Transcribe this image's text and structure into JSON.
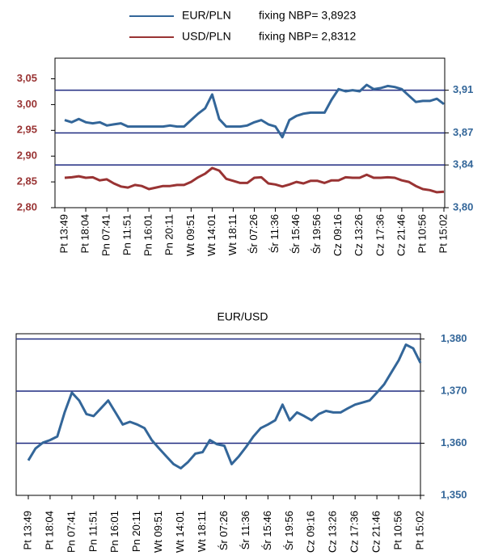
{
  "chart_data": [
    {
      "type": "line",
      "categories": [
        "Pt 13:49",
        null,
        null,
        "Pt 18:04",
        null,
        null,
        "Pn 07:41",
        null,
        null,
        "Pn 11:51",
        null,
        null,
        "Pn 16:01",
        null,
        null,
        "Pn 20:11",
        null,
        null,
        "Wt 09:51",
        null,
        null,
        "Wt 14:01",
        null,
        null,
        "Wt 18:11",
        null,
        null,
        "Śr 07:26",
        null,
        null,
        "Śr 11:36",
        null,
        null,
        "Śr 15:46",
        null,
        null,
        "Śr 19:56",
        null,
        null,
        "Cz 09:16",
        null,
        null,
        "Cz 13:26",
        null,
        null,
        "Cz 17:36",
        null,
        null,
        "Cz 21:46",
        null,
        null,
        "Pt 10:56",
        null,
        null,
        "Pt 15:02"
      ],
      "series": [
        {
          "name": "EUR/PLN",
          "fixing": "fixing NBP= 3,8923",
          "color": "#336699",
          "axis": "y2",
          "values": [
            3.882,
            3.88,
            3.883,
            3.88,
            3.879,
            3.88,
            3.877,
            3.878,
            3.879,
            3.876,
            3.876,
            3.876,
            3.876,
            3.876,
            3.876,
            3.877,
            3.876,
            3.876,
            3.882,
            3.888,
            3.893,
            3.906,
            3.883,
            3.876,
            3.876,
            3.876,
            3.877,
            3.88,
            3.882,
            3.878,
            3.876,
            3.866,
            3.882,
            3.886,
            3.888,
            3.889,
            3.889,
            3.889,
            3.901,
            3.911,
            3.909,
            3.91,
            3.909,
            3.915,
            3.911,
            3.912,
            3.914,
            3.913,
            3.911,
            3.905,
            3.899,
            3.9,
            3.9,
            3.902,
            3.897
          ]
        },
        {
          "name": "USD/PLN",
          "fixing": "fixing NBP= 2,8312",
          "color": "#993333",
          "values": [
            2.858,
            2.859,
            2.861,
            2.858,
            2.859,
            2.853,
            2.855,
            2.847,
            2.841,
            2.839,
            2.844,
            2.842,
            2.836,
            2.839,
            2.842,
            2.842,
            2.844,
            2.844,
            2.85,
            2.859,
            2.866,
            2.877,
            2.872,
            2.856,
            2.852,
            2.848,
            2.848,
            2.858,
            2.859,
            2.847,
            2.845,
            2.841,
            2.845,
            2.85,
            2.847,
            2.852,
            2.852,
            2.848,
            2.853,
            2.853,
            2.859,
            2.858,
            2.858,
            2.864,
            2.858,
            2.858,
            2.859,
            2.858,
            2.853,
            2.85,
            2.842,
            2.836,
            2.834,
            2.83,
            2.831
          ]
        }
      ],
      "ylim": [
        2.8,
        3.09
      ],
      "yticks": [
        {
          "value": 2.8,
          "label": "2,80"
        },
        {
          "value": 2.85,
          "label": "2,85"
        },
        {
          "value": 2.9,
          "label": "2,90"
        },
        {
          "value": 2.95,
          "label": "2,95"
        },
        {
          "value": 3.0,
          "label": "3,00"
        },
        {
          "value": 3.05,
          "label": "3,05"
        }
      ],
      "y2lim": [
        3.8,
        3.94
      ],
      "y2ticks": [
        {
          "value": 3.8,
          "label": "3,80"
        },
        {
          "value": 3.84,
          "label": "3,84"
        },
        {
          "value": 3.87,
          "label": "3,87"
        },
        {
          "value": 3.91,
          "label": "3,91"
        }
      ],
      "grid": true
    },
    {
      "type": "line",
      "title": "EUR/USD",
      "categories": [
        "Pt 13:49",
        null,
        null,
        "Pt 18:04",
        null,
        null,
        "Pn 07:41",
        null,
        null,
        "Pn 11:51",
        null,
        null,
        "Pn 16:01",
        null,
        null,
        "Pn 20:11",
        null,
        null,
        "Wt 09:51",
        null,
        null,
        "Wt 14:01",
        null,
        null,
        "Wt 18:11",
        null,
        null,
        "Śr 07:26",
        null,
        null,
        "Śr 11:36",
        null,
        null,
        "Śr 15:46",
        null,
        null,
        "Śr 19:56",
        null,
        null,
        "Cz 09:16",
        null,
        null,
        "Cz 13:26",
        null,
        null,
        "Cz 17:36",
        null,
        null,
        "Cz 21:46",
        null,
        null,
        "Pt 10:56",
        null,
        null,
        "Pt 15:02"
      ],
      "series": [
        {
          "color": "#336699",
          "axis": "y2",
          "values": [
            1.3567,
            1.359,
            1.3601,
            1.3606,
            1.3613,
            1.3659,
            1.3697,
            1.3682,
            1.3656,
            1.3652,
            1.3667,
            1.3682,
            1.3659,
            1.3636,
            1.3641,
            1.3636,
            1.3629,
            1.3606,
            1.359,
            1.3575,
            1.356,
            1.3552,
            1.3564,
            1.358,
            1.3583,
            1.3606,
            1.3598,
            1.3595,
            1.356,
            1.3575,
            1.3593,
            1.3613,
            1.3629,
            1.3636,
            1.3644,
            1.3674,
            1.3644,
            1.3659,
            1.3652,
            1.3644,
            1.3656,
            1.3662,
            1.3659,
            1.3659,
            1.3667,
            1.3674,
            1.3678,
            1.3682,
            1.3697,
            1.3713,
            1.3736,
            1.3759,
            1.3789,
            1.3782,
            1.3754
          ]
        }
      ],
      "y2lim": [
        1.35,
        1.381
      ],
      "y2ticks": [
        {
          "value": 1.35,
          "label": "1,350"
        },
        {
          "value": 1.36,
          "label": "1,360"
        },
        {
          "value": 1.37,
          "label": "1,370"
        },
        {
          "value": 1.38,
          "label": "1,380"
        }
      ],
      "grid": true
    }
  ]
}
